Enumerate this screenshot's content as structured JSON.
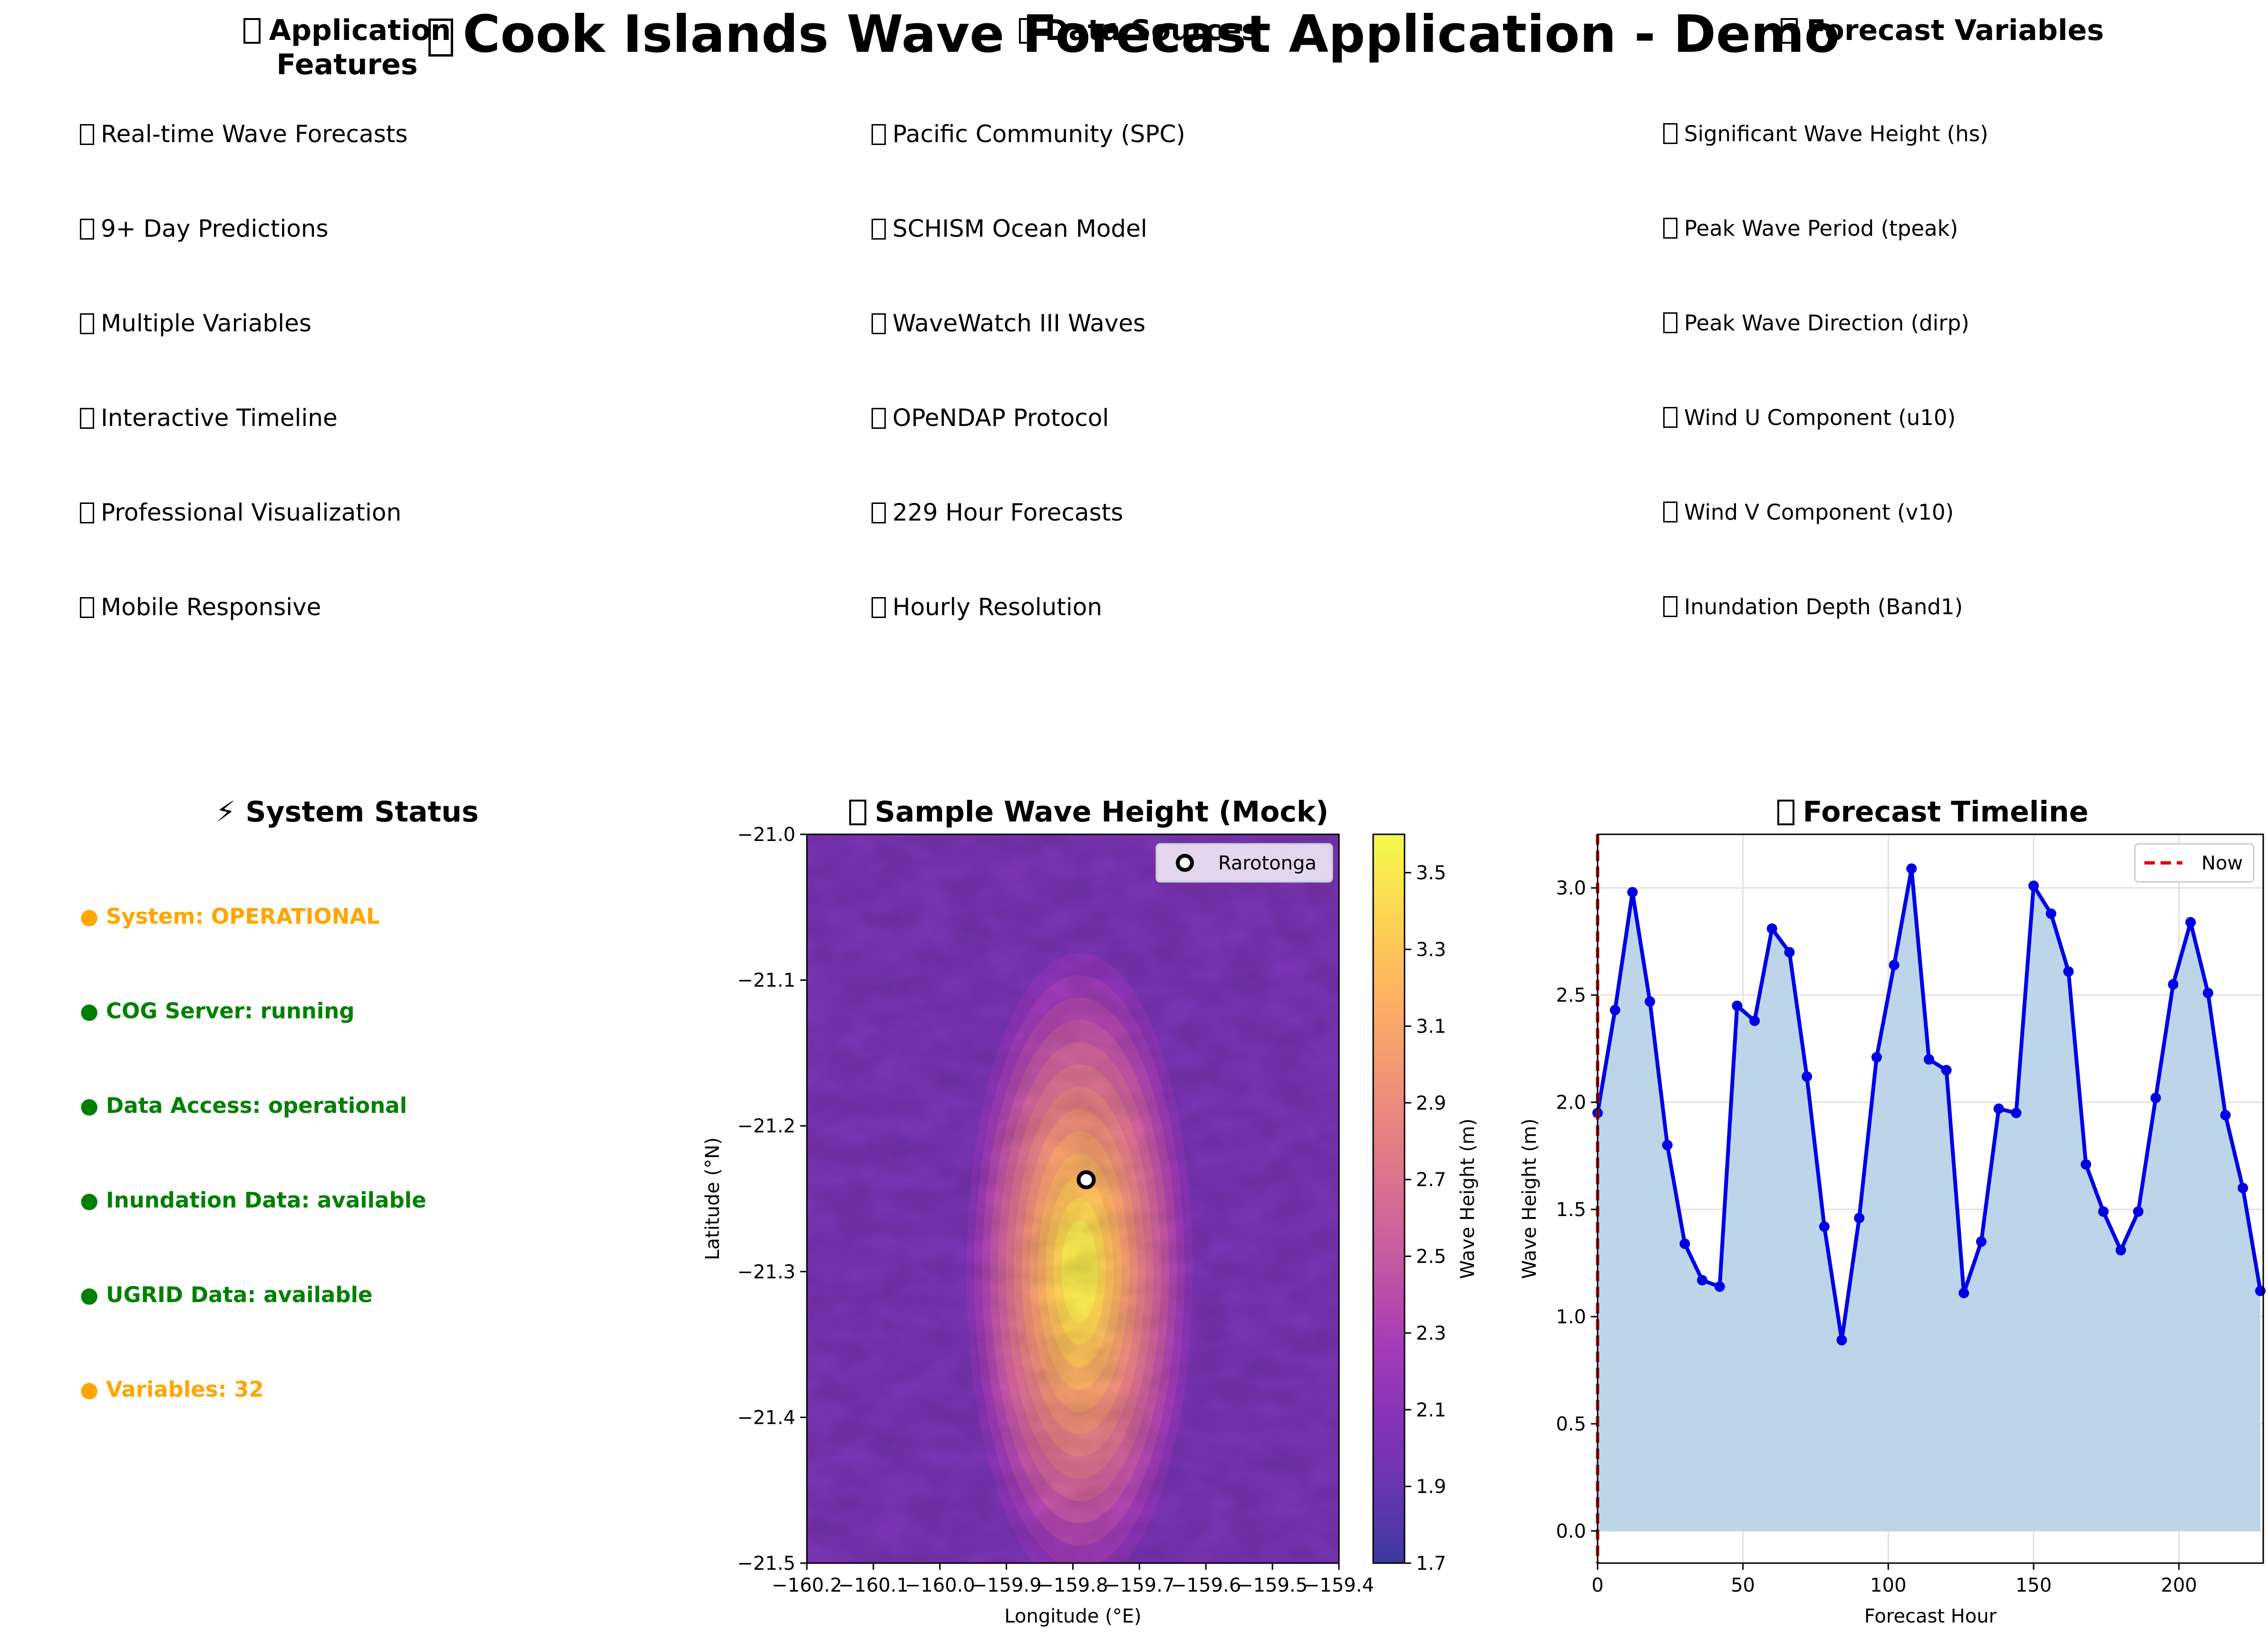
{
  "title": "Cook Islands Wave Forecast Application - Demo",
  "columns": [
    {
      "title": "Application Features",
      "items": [
        "Real-time Wave Forecasts",
        "9+ Day Predictions",
        "Multiple Variables",
        "Interactive Timeline",
        "Professional Visualization",
        "Mobile Responsive"
      ]
    },
    {
      "title": "Data Sources",
      "items": [
        "Pacific Community (SPC)",
        "SCHISM Ocean Model",
        "WaveWatch III Waves",
        "OPeNDAP Protocol",
        "229 Hour Forecasts",
        "Hourly Resolution"
      ]
    },
    {
      "title": "Forecast Variables",
      "items": [
        "Significant Wave Height (hs)",
        "Peak Wave Period (tpeak)",
        "Peak Wave Direction (dirp)",
        "Wind U Component (u10)",
        "Wind V Component (v10)",
        "Inundation Depth (Band1)"
      ]
    }
  ],
  "system_status": {
    "title": "⚡ System Status",
    "items": [
      {
        "text": "● System: OPERATIONAL",
        "color": "#FFA500"
      },
      {
        "text": "● COG Server: running",
        "color": "#008000"
      },
      {
        "text": "● Data Access: operational",
        "color": "#008000"
      },
      {
        "text": "● Inundation Data: available",
        "color": "#008000"
      },
      {
        "text": "● UGRID Data: available",
        "color": "#008000"
      },
      {
        "text": "● Variables: 32",
        "color": "#FFA500"
      }
    ]
  },
  "chart_data": [
    {
      "type": "heatmap",
      "title": "Sample Wave Height (Mock)",
      "xlabel": "Longitude (°E)",
      "ylabel": "Latitude (°N)",
      "xlim": [
        -160.2,
        -159.4
      ],
      "ylim": [
        -21.5,
        -21.0
      ],
      "x_ticks": [
        "−160.2",
        "−160.1",
        "−160.0",
        "−159.9",
        "−159.8",
        "−159.7",
        "−159.6",
        "−159.5",
        "−159.4"
      ],
      "y_ticks": [
        "−21.0",
        "−21.1",
        "−21.2",
        "−21.3",
        "−21.4",
        "−21.5"
      ],
      "colorbar": {
        "label": "Wave Height (m)",
        "range": [
          1.7,
          3.6
        ],
        "ticks": [
          "1.7",
          "1.9",
          "2.1",
          "2.3",
          "2.5",
          "2.7",
          "2.9",
          "3.1",
          "3.3",
          "3.5"
        ],
        "colormap": "plasma",
        "alpha": 0.8
      },
      "field": {
        "background": 2.0,
        "peak_value": 3.5,
        "peak_center": {
          "lon": -159.79,
          "lat": -21.3
        },
        "spread_deg": {
          "lon": 0.07,
          "lat": 0.09
        }
      },
      "marker": {
        "label": "Rarotonga",
        "lon": -159.78,
        "lat": -21.237
      },
      "legend": {
        "entries": [
          "Rarotonga"
        ],
        "position": "top-right"
      }
    },
    {
      "type": "line",
      "title": "Forecast Timeline",
      "xlabel": "Forecast Hour",
      "ylabel": "Wave Height (m)",
      "xlim": [
        0,
        229
      ],
      "ylim": [
        -0.15,
        3.25
      ],
      "x_ticks": [
        "0",
        "50",
        "100",
        "150",
        "200"
      ],
      "y_ticks": [
        "0.0",
        "0.5",
        "1.0",
        "1.5",
        "2.0",
        "2.5",
        "3.0"
      ],
      "grid": true,
      "fill_color": "#B9D3E8",
      "line_color": "#0000E6",
      "now_line": {
        "label": "Now",
        "x": 0,
        "color": "#E00000"
      },
      "legend": {
        "entries": [
          "Now"
        ],
        "position": "top-right"
      },
      "x": [
        0,
        6,
        12,
        18,
        24,
        30,
        36,
        42,
        48,
        54,
        60,
        66,
        72,
        78,
        84,
        90,
        96,
        102,
        108,
        114,
        120,
        126,
        132,
        138,
        144,
        150,
        156,
        162,
        168,
        174,
        180,
        186,
        192,
        198,
        204,
        210,
        216,
        222,
        228
      ],
      "y": [
        1.95,
        2.43,
        2.98,
        2.47,
        1.8,
        1.34,
        1.17,
        1.14,
        2.45,
        2.38,
        2.81,
        2.7,
        2.12,
        1.42,
        0.89,
        1.46,
        2.21,
        2.64,
        3.09,
        2.2,
        2.15,
        1.11,
        1.35,
        1.97,
        1.95,
        3.01,
        2.88,
        2.61,
        1.71,
        1.49,
        1.31,
        1.49,
        2.02,
        2.55,
        2.84,
        2.51,
        1.94,
        1.6,
        1.12
      ]
    }
  ]
}
